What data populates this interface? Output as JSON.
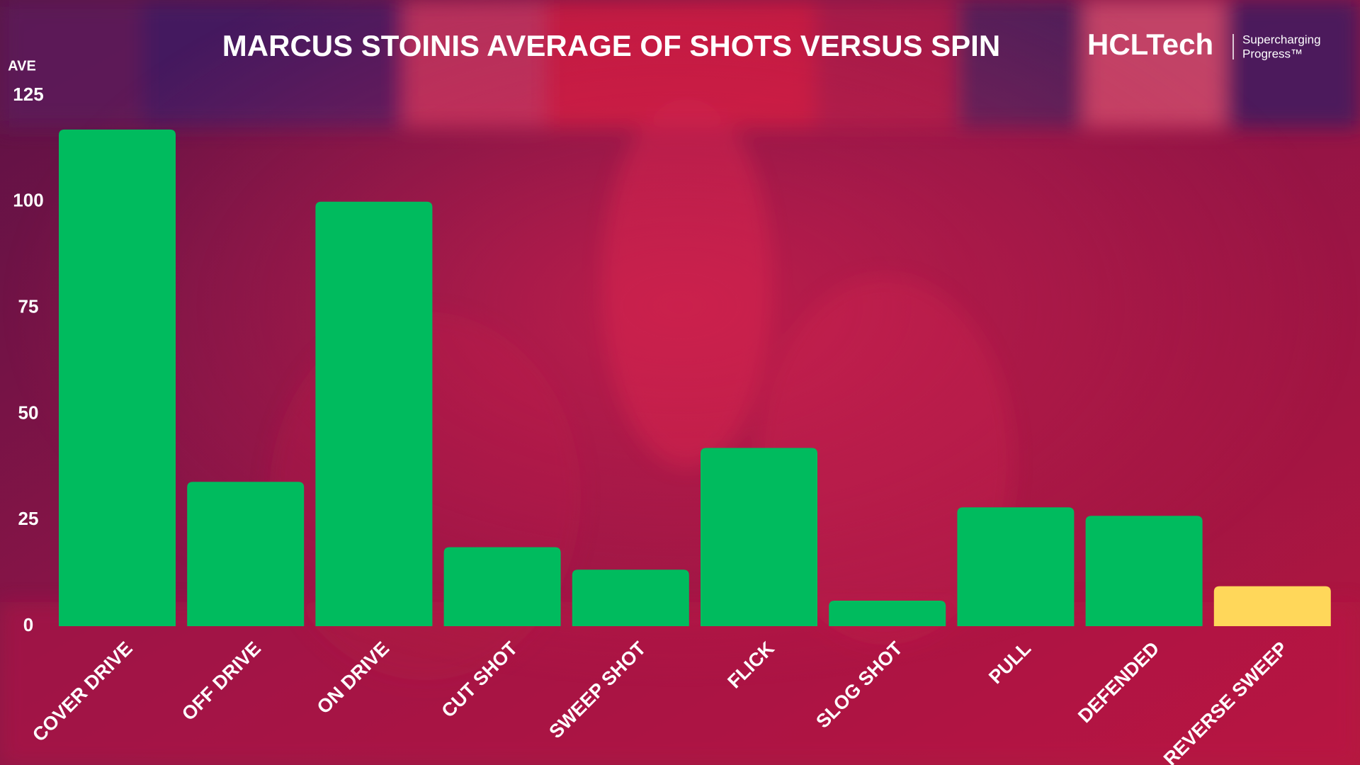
{
  "chart_data": {
    "type": "bar",
    "title": "MARCUS STOINIS AVERAGE OF SHOTS VERSUS SPIN",
    "y_label": "AVE",
    "categories": [
      "COVER DRIVE",
      "OFF DRIVE",
      "ON DRIVE",
      "CUT SHOT",
      "SWEEP SHOT",
      "FLICK",
      "SLOG SHOT",
      "PULL",
      "DEFENDED",
      "REVERSE SWEEP"
    ],
    "values": [
      117,
      34,
      100,
      18.6,
      13.3,
      42,
      6,
      28,
      26,
      9.4
    ],
    "colors": [
      "#00bb5e",
      "#00bb5e",
      "#00bb5e",
      "#00bb5e",
      "#00bb5e",
      "#00bb5e",
      "#00bb5e",
      "#00bb5e",
      "#00bb5e",
      "#ffd75a"
    ],
    "ylim": [
      0,
      125
    ],
    "yticks": [
      0,
      25,
      50,
      75,
      100,
      125
    ],
    "grid": false
  },
  "logo": {
    "brand": "HCLTech",
    "tagline": [
      "Supercharging",
      "Progress™"
    ]
  }
}
